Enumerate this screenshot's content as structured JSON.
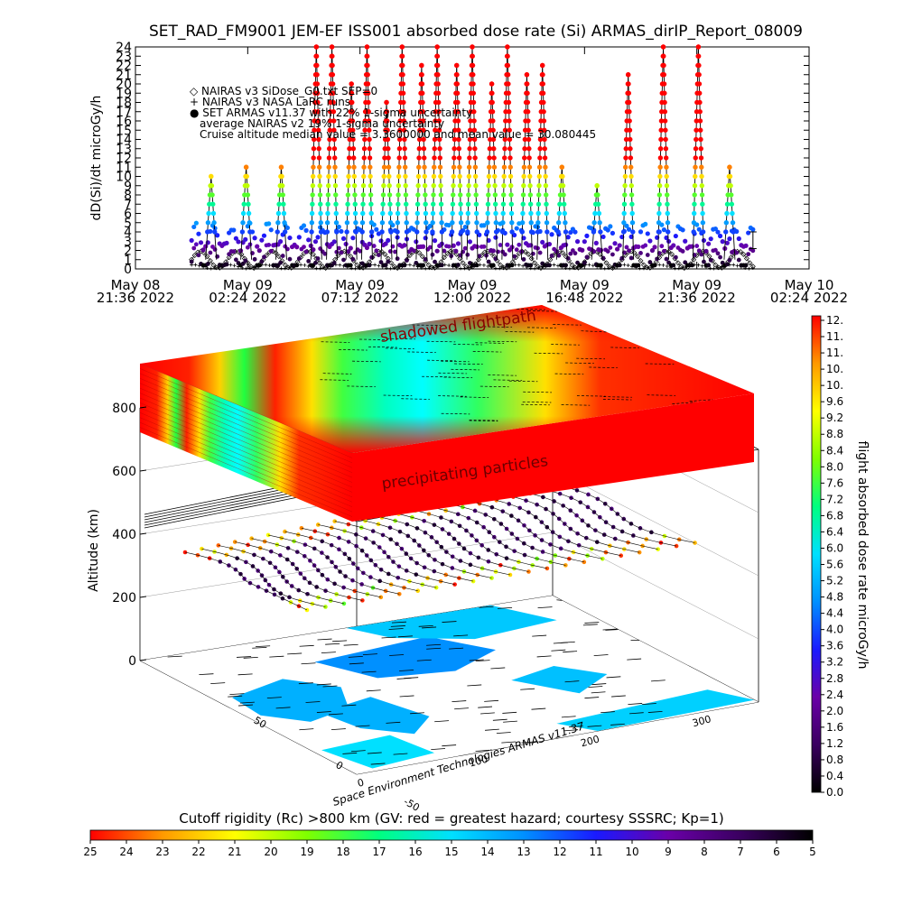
{
  "title": "SET_RAD_FM9001  JEM-EF ISS001 absorbed dose rate (Si) ARMAS_dirIP_Report_08009",
  "chart_data": [
    {
      "type": "line",
      "panel": "top time series",
      "ylabel": "dD(Si)/dt microGy/h",
      "ylim": [
        0,
        24
      ],
      "y_ticks": [
        "0",
        "1",
        "2",
        "3",
        "4",
        "5",
        "6",
        "7",
        "8",
        "9",
        "10",
        "11",
        "12",
        "13",
        "14",
        "15",
        "16",
        "17",
        "18",
        "19",
        "20",
        "21",
        "22",
        "23",
        "24"
      ],
      "x_ticks": [
        {
          "day": "May 08",
          "time": "21:36  2022"
        },
        {
          "day": "May 09",
          "time": "02:24  2022"
        },
        {
          "day": "May 09",
          "time": "07:12  2022"
        },
        {
          "day": "May 09",
          "time": "12:00  2022"
        },
        {
          "day": "May 09",
          "time": "16:48  2022"
        },
        {
          "day": "May 09",
          "time": "21:36  2022"
        },
        {
          "day": "May 10",
          "time": "02:24  2022"
        }
      ],
      "x_range": [
        "2022-05-08 21:36",
        "2022-05-10 02:24"
      ],
      "data_span": [
        "2022-05-09 00:00",
        "2022-05-10 00:00"
      ],
      "legend": [
        "◇ NAIRAS v3 SiDose_G0.txt SEP=0",
        "+ NAIRAS v3 NASA LaRC runs",
        "● SET ARMAS v11.37 with 22% 1-sigma uncertainty",
        "average NAIRAS v2 19% 1-sigma uncertainty",
        "Cruise altitude median value =  3.3600000 and mean value =  30.080445"
      ],
      "series": [
        {
          "name": "NAIRAS v3 SiDose_G0.txt SEP=0",
          "marker": "diamond",
          "color": "#000000",
          "description": "oscillating baseline 0.1–2.0 microGy/h over the whole span"
        },
        {
          "name": "NAIRAS v3 NASA LaRC runs",
          "marker": "plus",
          "color": "#000000",
          "description": "near-zero baseline 0–0.5 microGy/h"
        },
        {
          "name": "SET ARMAS v11.37 with 22% 1-sigma uncertainty",
          "marker": "dot",
          "description": "orbital spikes; background 2–5 microGy/h, SAA passes reach 6–24+ microGy/h",
          "spikes": [
            {
              "t": "2022-05-09 00:50",
              "peak": 10
            },
            {
              "t": "2022-05-09 02:20",
              "peak": 11
            },
            {
              "t": "2022-05-09 03:50",
              "peak": 11
            },
            {
              "t": "2022-05-09 05:20",
              "peak": 24
            },
            {
              "t": "2022-05-09 06:00",
              "peak": 24
            },
            {
              "t": "2022-05-09 06:50",
              "peak": 20
            },
            {
              "t": "2022-05-09 07:30",
              "peak": 24
            },
            {
              "t": "2022-05-09 08:20",
              "peak": 18
            },
            {
              "t": "2022-05-09 09:00",
              "peak": 24
            },
            {
              "t": "2022-05-09 09:50",
              "peak": 22
            },
            {
              "t": "2022-05-09 10:30",
              "peak": 24
            },
            {
              "t": "2022-05-09 11:20",
              "peak": 22
            },
            {
              "t": "2022-05-09 12:00",
              "peak": 24
            },
            {
              "t": "2022-05-09 12:50",
              "peak": 20
            },
            {
              "t": "2022-05-09 13:30",
              "peak": 24
            },
            {
              "t": "2022-05-09 14:20",
              "peak": 21
            },
            {
              "t": "2022-05-09 15:00",
              "peak": 22
            },
            {
              "t": "2022-05-09 15:50",
              "peak": 11
            },
            {
              "t": "2022-05-09 17:20",
              "peak": 9
            },
            {
              "t": "2022-05-09 18:40",
              "peak": 21
            },
            {
              "t": "2022-05-09 20:10",
              "peak": 24
            },
            {
              "t": "2022-05-09 21:40",
              "peak": 24
            },
            {
              "t": "2022-05-09 23:00",
              "peak": 11
            }
          ]
        }
      ],
      "colors": {
        "axis": "#000000"
      }
    },
    {
      "type": "heatmap",
      "panel": "3D flight-path view",
      "ylabel": "Altitude (km)",
      "z_ticks": [
        "0",
        "200",
        "400",
        "600",
        "800"
      ],
      "lat_ticks": [
        "50",
        "0",
        "-50"
      ],
      "lon_ticks": [
        "0",
        "100",
        "200",
        "300"
      ],
      "annotations": [
        "shadowed flightpath",
        "precipitating particles"
      ],
      "credit": "Space Environment Technologies ARMAS v11.37",
      "colorbar": {
        "label": "flight absorbed dose rate microGy/h",
        "ticks": [
          "12.",
          "11.",
          "11.",
          "10.",
          "10.",
          "9.6",
          "9.2",
          "8.8",
          "8.4",
          "8.0",
          "7.6",
          "7.2",
          "6.8",
          "6.4",
          "6.0",
          "5.6",
          "5.2",
          "4.8",
          "4.4",
          "4.0",
          "3.6",
          "3.2",
          "2.8",
          "2.4",
          "2.0",
          "1.6",
          "1.2",
          "0.8",
          "0.4",
          "0.0"
        ],
        "range": [
          0,
          12
        ]
      },
      "cutoff_bar": {
        "label": "Cutoff rigidity (Rc) >800 km (GV: red = greatest hazard; courtesy SSSRC; Kp=1)",
        "ticks": [
          "25",
          "24",
          "23",
          "22",
          "21",
          "20",
          "19",
          "18",
          "17",
          "16",
          "15",
          "14",
          "13",
          "12",
          "11",
          "10",
          "9",
          "8",
          "7",
          "6",
          "5"
        ]
      }
    }
  ],
  "colormap": [
    "#000000",
    "#3a0060",
    "#6a00a8",
    "#1a1aff",
    "#0090ff",
    "#00e0ff",
    "#00ff80",
    "#7fff00",
    "#ffff00",
    "#ff9900",
    "#ff0000"
  ]
}
